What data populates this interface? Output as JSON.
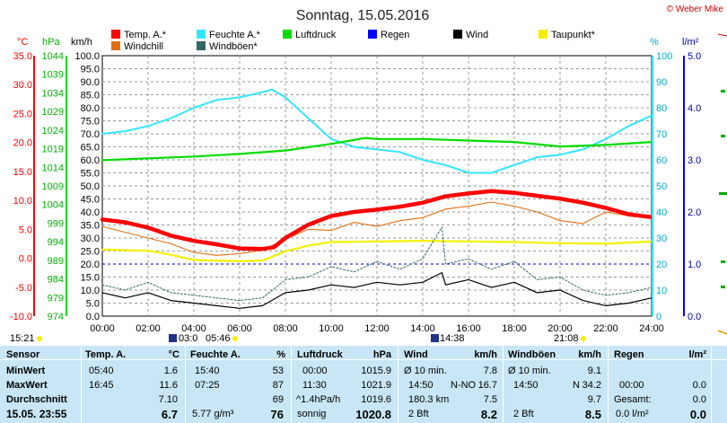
{
  "header": {
    "title": "Sonntag, 15.05.2016",
    "credit": "© Weber Mike"
  },
  "legend": [
    {
      "label": "Temp. A.*",
      "color": "#ff0000"
    },
    {
      "label": "Feuchte A.*",
      "color": "#33e6ff"
    },
    {
      "label": "Luftdruck",
      "color": "#00dd00"
    },
    {
      "label": "Regen",
      "color": "#0000ff"
    },
    {
      "label": "Wind",
      "color": "#000000"
    },
    {
      "label": "Taupunkt*",
      "color": "#f5f000"
    },
    {
      "label": "Windchill",
      "color": "#e07010"
    },
    {
      "label": "Windböen*",
      "color": "#336666"
    }
  ],
  "axes": {
    "temp_unit": "°C",
    "press_unit": "hPa",
    "wind_unit": "km/h",
    "hum_unit": "%",
    "rain_unit": "l/m²",
    "temp_ticks": [
      "35.0",
      "30.0",
      "25.0",
      "20.0",
      "15.0",
      "10.0",
      "5.0",
      "0.0",
      "-5.0",
      "-10.0"
    ],
    "press_ticks": [
      "1044",
      "1039",
      "1034",
      "1029",
      "1024",
      "1019",
      "1014",
      "1009",
      "1004",
      "999",
      "994",
      "989",
      "984",
      "979",
      "974"
    ],
    "wind_ticks": [
      "100.0",
      "95.0",
      "90.0",
      "85.0",
      "80.0",
      "75.0",
      "70.0",
      "65.0",
      "60.0",
      "55.0",
      "50.0",
      "45.0",
      "40.0",
      "35.0",
      "30.0",
      "25.0",
      "20.0",
      "15.0",
      "10.0",
      "5.0",
      "0.0"
    ],
    "hum_ticks": [
      "100",
      "90",
      "80",
      "70",
      "60",
      "50",
      "40",
      "30",
      "20",
      "10",
      "0"
    ],
    "rain_ticks": [
      "5.0",
      "4.0",
      "3.0",
      "2.0",
      "1.0",
      "0.0"
    ],
    "time_ticks": [
      "00:00",
      "02:00",
      "04:00",
      "06:00",
      "08:00",
      "10:00",
      "12:00",
      "14:00",
      "16:00",
      "18:00",
      "20:00",
      "22:00",
      "24:00"
    ]
  },
  "sun": {
    "rise": "05:46",
    "set": "21:08",
    "left_time": "15:21",
    "moon": "03:0",
    "noon": "14:38"
  },
  "chart_data": {
    "type": "line",
    "title": "Sonntag, 15.05.2016",
    "x_label": "",
    "x_range": [
      "00:00",
      "24:00"
    ],
    "grid": true,
    "legend_position": "top",
    "series": [
      {
        "name": "Temp. A.*",
        "axis": "°C",
        "color": "#ff0000",
        "x": [
          "00:00",
          "01:00",
          "02:00",
          "03:00",
          "04:00",
          "05:00",
          "06:00",
          "07:00",
          "07:30",
          "08:00",
          "09:00",
          "10:00",
          "11:00",
          "12:00",
          "13:00",
          "14:00",
          "15:00",
          "16:00",
          "17:00",
          "18:00",
          "19:00",
          "20:00",
          "21:00",
          "22:00",
          "23:00",
          "24:00"
        ],
        "y": [
          6.7,
          6.2,
          5.3,
          3.9,
          3.0,
          2.4,
          1.7,
          1.6,
          1.9,
          3.5,
          5.8,
          7.3,
          8.0,
          8.4,
          8.9,
          9.6,
          10.7,
          11.2,
          11.6,
          11.3,
          10.8,
          10.3,
          9.6,
          8.7,
          7.6,
          7.1
        ]
      },
      {
        "name": "Feuchte A.*",
        "axis": "%",
        "color": "#33e6ff",
        "x": [
          "00:00",
          "01:00",
          "02:00",
          "03:00",
          "04:00",
          "05:00",
          "06:00",
          "07:00",
          "07:25",
          "08:00",
          "09:00",
          "10:00",
          "11:00",
          "12:00",
          "13:00",
          "14:00",
          "15:00",
          "16:00",
          "17:00",
          "18:00",
          "19:00",
          "20:00",
          "21:00",
          "22:00",
          "23:00",
          "24:00"
        ],
        "y": [
          70,
          71,
          73,
          76,
          80,
          83,
          84,
          86,
          87,
          84,
          76,
          68,
          65,
          64,
          63,
          60,
          58,
          55,
          55,
          58,
          61,
          62,
          64,
          68,
          73,
          77
        ]
      },
      {
        "name": "Luftdruck",
        "axis": "hPa",
        "color": "#00dd00",
        "x": [
          "00:00",
          "02:00",
          "04:00",
          "06:00",
          "08:00",
          "10:00",
          "11:30",
          "12:00",
          "14:00",
          "16:00",
          "18:00",
          "20:00",
          "22:00",
          "24:00"
        ],
        "y": [
          1015.9,
          1016.4,
          1016.9,
          1017.6,
          1018.5,
          1020.3,
          1021.9,
          1021.6,
          1021.6,
          1021.2,
          1020.8,
          1019.6,
          1020.0,
          1020.8
        ]
      },
      {
        "name": "Regen",
        "axis": "l/m²",
        "color": "#0000ff",
        "x": [
          "00:00",
          "24:00"
        ],
        "y": [
          0.0,
          0.0
        ]
      },
      {
        "name": "Wind",
        "axis": "km/h",
        "color": "#000000",
        "x": [
          "00:00",
          "01:00",
          "02:00",
          "03:00",
          "04:00",
          "05:00",
          "06:00",
          "07:00",
          "08:00",
          "09:00",
          "10:00",
          "11:00",
          "12:00",
          "13:00",
          "14:00",
          "14:50",
          "15:00",
          "16:00",
          "17:00",
          "18:00",
          "19:00",
          "20:00",
          "21:00",
          "22:00",
          "23:00",
          "24:00"
        ],
        "y": [
          9,
          7,
          9,
          6,
          5,
          4,
          3,
          4,
          9,
          10,
          12,
          11,
          13,
          12,
          13,
          16.7,
          12,
          14,
          11,
          13,
          9,
          10,
          6,
          4,
          5,
          7
        ]
      },
      {
        "name": "Taupunkt*",
        "axis": "°C",
        "color": "#f5f000",
        "x": [
          "00:00",
          "02:00",
          "03:00",
          "04:00",
          "06:00",
          "07:00",
          "08:00",
          "09:00",
          "10:00",
          "12:00",
          "14:00",
          "16:00",
          "18:00",
          "20:00",
          "22:00",
          "24:00"
        ],
        "y": [
          1.5,
          1.3,
          0.6,
          -0.3,
          -0.5,
          -0.4,
          1.2,
          2.2,
          2.8,
          2.9,
          3.0,
          2.9,
          2.8,
          2.6,
          2.5,
          2.9
        ]
      },
      {
        "name": "Windchill",
        "axis": "°C",
        "color": "#e07010",
        "x": [
          "00:00",
          "01:00",
          "02:00",
          "03:00",
          "04:00",
          "05:00",
          "06:00",
          "07:00",
          "08:00",
          "09:00",
          "10:00",
          "11:00",
          "12:00",
          "13:00",
          "14:00",
          "15:00",
          "16:00",
          "17:00",
          "18:00",
          "19:00",
          "20:00",
          "21:00",
          "22:00",
          "23:00",
          "24:00"
        ],
        "y": [
          5.5,
          4.5,
          3.5,
          2.5,
          1.0,
          0.5,
          0.8,
          1.4,
          3.3,
          5.0,
          4.8,
          6.2,
          5.5,
          6.5,
          7.0,
          8.5,
          9.0,
          9.7,
          9.0,
          8.0,
          6.5,
          6.0,
          8.0,
          7.3,
          6.9
        ]
      },
      {
        "name": "Windböen*",
        "axis": "km/h",
        "color": "#336666",
        "x": [
          "00:00",
          "01:00",
          "02:00",
          "03:00",
          "04:00",
          "05:00",
          "06:00",
          "07:00",
          "08:00",
          "09:00",
          "10:00",
          "11:00",
          "12:00",
          "13:00",
          "14:00",
          "14:50",
          "15:00",
          "16:00",
          "17:00",
          "18:00",
          "19:00",
          "20:00",
          "21:00",
          "22:00",
          "23:00",
          "24:00"
        ],
        "y": [
          12,
          10,
          13,
          9,
          8,
          7,
          6,
          7,
          14,
          15,
          19,
          17,
          21,
          18,
          22,
          34.2,
          20,
          22,
          18,
          21,
          14,
          15,
          10,
          8,
          9,
          11
        ]
      }
    ]
  },
  "stats": {
    "headers": {
      "sensor": "Sensor",
      "temp": "Temp. A.",
      "temp_unit": "°C",
      "hum": "Feuchte A.",
      "hum_unit": "%",
      "press": "Luftdruck",
      "press_unit": "hPa",
      "wind": "Wind",
      "wind_unit": "km/h",
      "gust": "Windböen",
      "gust_unit": "km/h",
      "rain": "Regen",
      "rain_unit": "l/m²"
    },
    "min": {
      "label": "MinWert",
      "temp_time": "05:40",
      "temp_val": "1.6",
      "hum_time": "15:40",
      "hum_val": "53",
      "press_time": "00:00",
      "press_val": "1015.9",
      "wind_label": "Ø 10 min.",
      "wind_val": "7.8",
      "gust_label": "Ø 10 min.",
      "gust_val": "9.1",
      "rain_time": "",
      "rain_val": ""
    },
    "max": {
      "label": "MaxWert",
      "temp_time": "16:45",
      "temp_val": "11.6",
      "hum_time": "07:25",
      "hum_val": "87",
      "press_time": "11:30",
      "press_val": "1021.9",
      "wind_time": "14:50",
      "wind_dir": "N-NO",
      "wind_val": "16.7",
      "gust_time": "14:50",
      "gust_dir": "N",
      "gust_val": "34.2",
      "rain_time": "00:00",
      "rain_val": "0.0"
    },
    "avg": {
      "label": "Durchschnitt",
      "temp_val": "7.10",
      "hum_val": "69",
      "press_trend": "^1.4hPa/h",
      "press_val": "1019.6",
      "wind_dist": "180.3 km",
      "wind_val": "7.5",
      "gust_val": "9.7",
      "rain_label": "Gesamt:",
      "rain_val": "0.0"
    },
    "current": {
      "label": "15.05. 23:55",
      "temp_val": "6.7",
      "hum_abs": "5.77 g/m³",
      "hum_val": "76",
      "press_text": "sonnig",
      "press_val": "1020.8",
      "wind_bft": "2 Bft",
      "wind_val": "8.2",
      "gust_bft": "2 Bft",
      "gust_val": "8.5",
      "rain_sub": "0.0 l/m²",
      "rain_val": "0.0"
    }
  }
}
